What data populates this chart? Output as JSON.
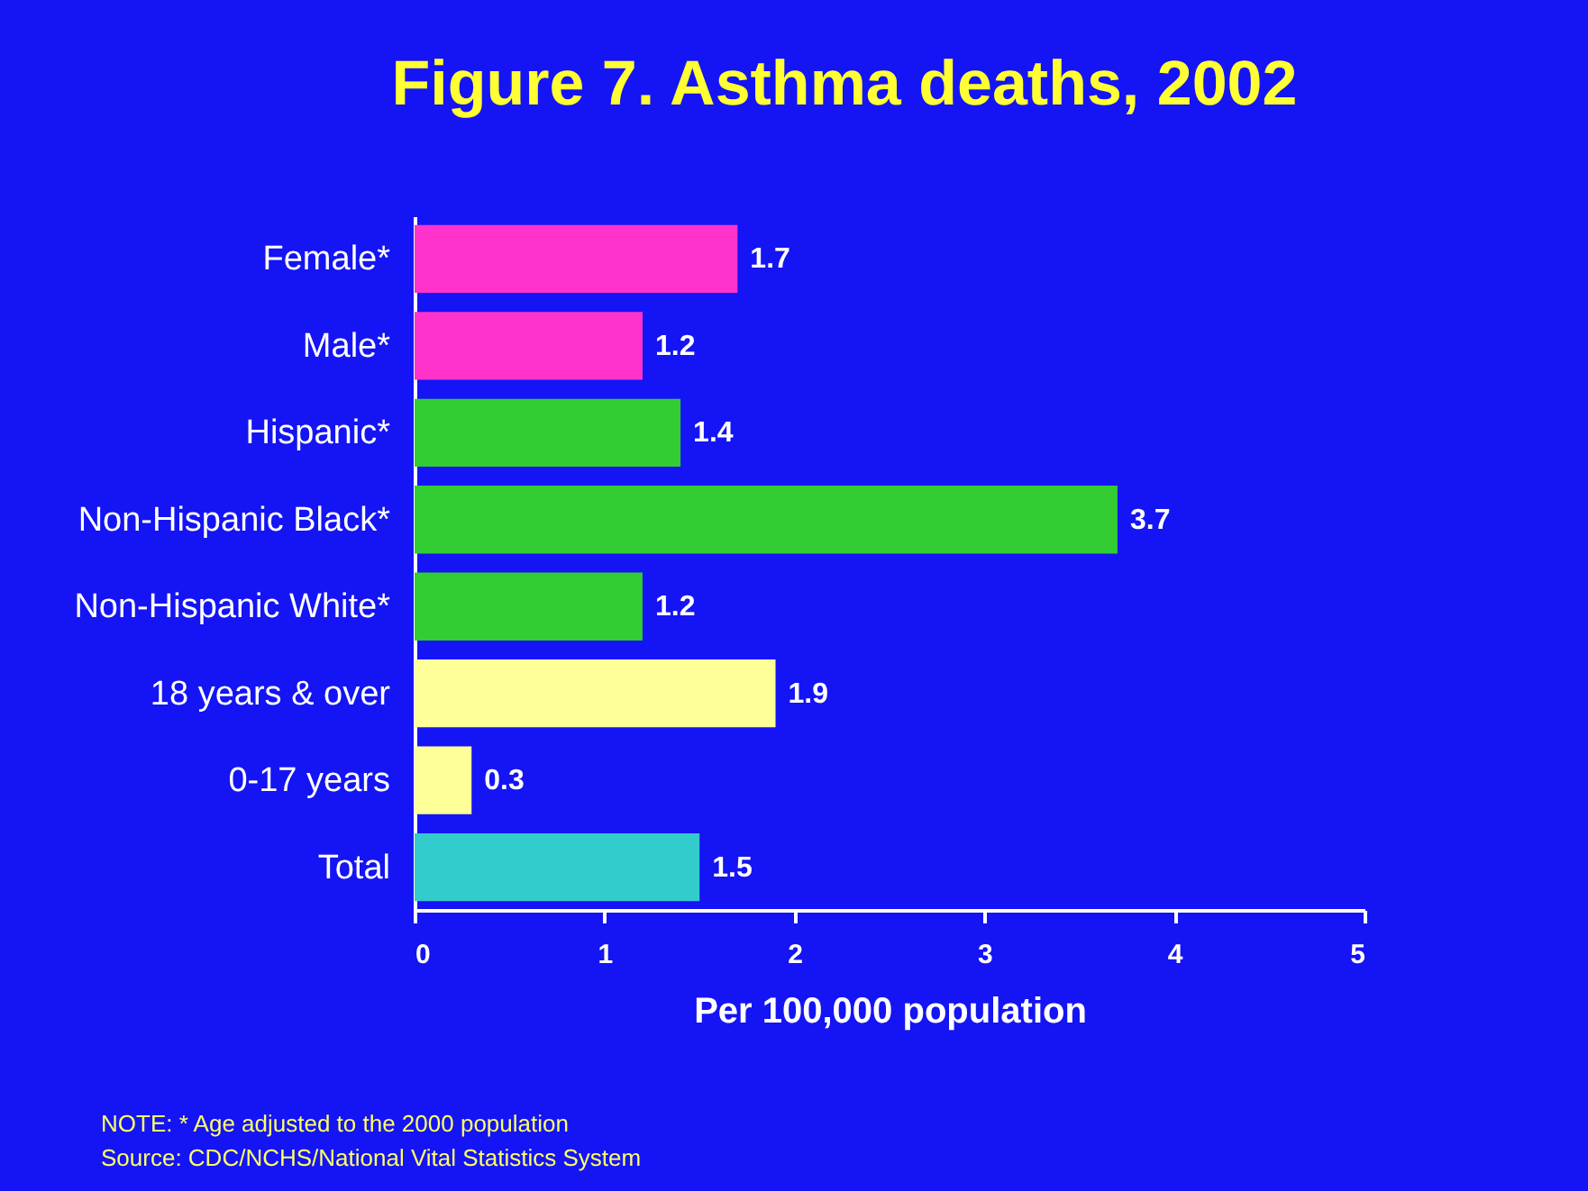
{
  "chart_data": {
    "type": "bar",
    "orientation": "horizontal",
    "title": "Figure 7. Asthma deaths, 2002",
    "xlabel": "Per 100,000 population",
    "categories": [
      "Female*",
      "Male*",
      "Hispanic*",
      "Non-Hispanic Black*",
      "Non-Hispanic White*",
      "18 years & over",
      "0-17 years",
      "Total"
    ],
    "values": [
      1.7,
      1.2,
      1.4,
      3.7,
      1.2,
      1.9,
      0.3,
      1.5
    ],
    "colors": [
      "#ff33cc",
      "#ff33cc",
      "#33cc33",
      "#33cc33",
      "#33cc33",
      "#ffff99",
      "#ffff99",
      "#33cccc"
    ],
    "xlim": [
      0,
      5
    ],
    "xticks": [
      0,
      1,
      2,
      3,
      4,
      5
    ],
    "data_labels": true,
    "grid": false,
    "legend": false,
    "annotations": [
      "NOTE: * Age adjusted to the 2000 population",
      "Source: CDC/NCHS/National Vital Statistics System"
    ]
  }
}
